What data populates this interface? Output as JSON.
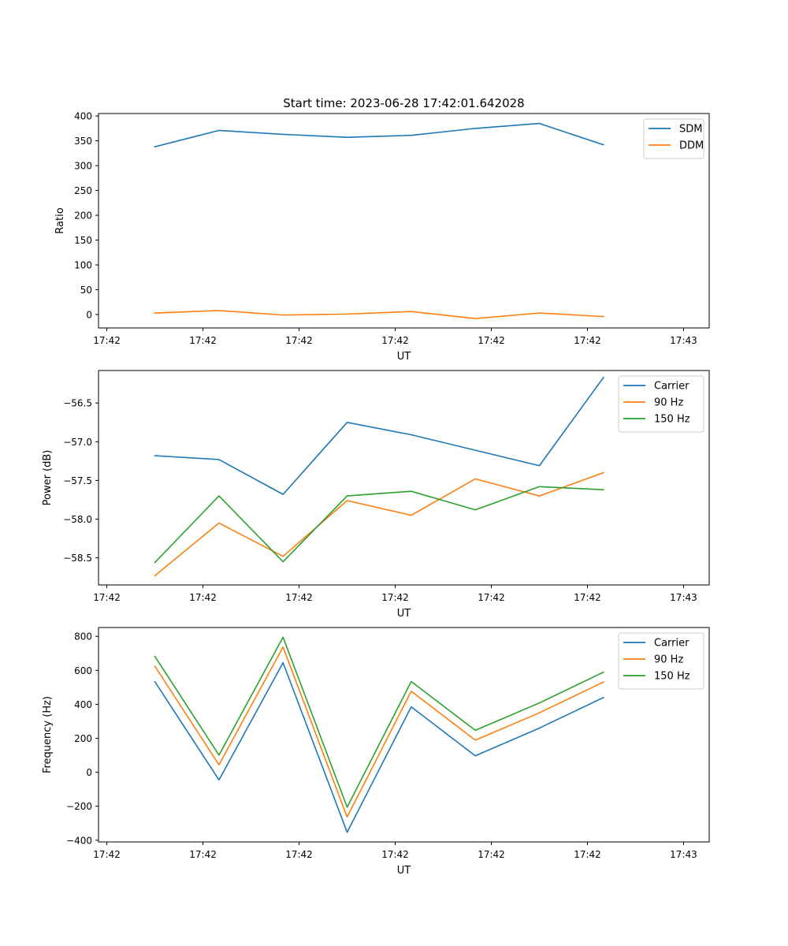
{
  "figure": {
    "title": "Start time: 2023-06-28 17:42:01.642028"
  },
  "colors": {
    "blue": "#1f77b4",
    "orange": "#ff7f0e",
    "green": "#2ca02c"
  },
  "chart_data": [
    {
      "type": "line",
      "title": "Start time: 2023-06-28 17:42:01.642028",
      "xlabel": "UT",
      "ylabel": "Ratio",
      "x_tick_labels": [
        "17:42",
        "17:42",
        "17:42",
        "17:42",
        "17:42",
        "17:42",
        "17:43"
      ],
      "xlim": [
        -0.13,
        9.4
      ],
      "ylim": [
        -27,
        405
      ],
      "yticks": [
        0,
        50,
        100,
        150,
        200,
        250,
        300,
        350,
        400
      ],
      "y_tick_labels": [
        "0",
        "50",
        "100",
        "150",
        "200",
        "250",
        "300",
        "350",
        "400"
      ],
      "legend": "top-right",
      "x": [
        0.75,
        1.75,
        2.75,
        3.75,
        4.75,
        5.75,
        6.75,
        7.75
      ],
      "series": [
        {
          "name": "SDM",
          "color": "#1f77b4",
          "values": [
            338,
            371,
            363,
            357,
            361,
            375,
            385,
            342
          ]
        },
        {
          "name": "DDM",
          "color": "#ff7f0e",
          "values": [
            3,
            8,
            -1,
            1,
            6,
            -8,
            3,
            -4
          ]
        }
      ]
    },
    {
      "type": "line",
      "xlabel": "UT",
      "ylabel": "Power (dB)",
      "x_tick_labels": [
        "17:42",
        "17:42",
        "17:42",
        "17:42",
        "17:42",
        "17:42",
        "17:43"
      ],
      "xlim": [
        -0.13,
        9.4
      ],
      "ylim": [
        -58.85,
        -56.08
      ],
      "yticks": [
        -58.5,
        -58.0,
        -57.5,
        -57.0,
        -56.5
      ],
      "y_tick_labels": [
        "−58.5",
        "−58.0",
        "−57.5",
        "−57.0",
        "−56.5"
      ],
      "legend": "top-right",
      "x": [
        0.75,
        1.75,
        2.75,
        3.75,
        4.75,
        5.75,
        6.75,
        7.75
      ],
      "series": [
        {
          "name": "Carrier",
          "color": "#1f77b4",
          "values": [
            -57.18,
            -57.23,
            -57.68,
            -56.75,
            -56.91,
            -57.11,
            -57.31,
            -56.17
          ]
        },
        {
          "name": "90 Hz",
          "color": "#ff7f0e",
          "values": [
            -58.73,
            -58.05,
            -58.48,
            -57.76,
            -57.95,
            -57.48,
            -57.7,
            -57.4
          ]
        },
        {
          "name": "150 Hz",
          "color": "#2ca02c",
          "values": [
            -58.56,
            -57.7,
            -58.55,
            -57.7,
            -57.64,
            -57.88,
            -57.58,
            -57.62
          ]
        }
      ]
    },
    {
      "type": "line",
      "xlabel": "UT",
      "ylabel": "Frequency (Hz)",
      "x_tick_labels": [
        "17:42",
        "17:42",
        "17:42",
        "17:42",
        "17:42",
        "17:42",
        "17:43"
      ],
      "xlim": [
        -0.13,
        9.4
      ],
      "ylim": [
        -410,
        852
      ],
      "yticks": [
        -400,
        -200,
        0,
        200,
        400,
        600,
        800
      ],
      "y_tick_labels": [
        "−400",
        "−200",
        "0",
        "200",
        "400",
        "600",
        "800"
      ],
      "legend": "top-right",
      "x": [
        0.75,
        1.75,
        2.75,
        3.75,
        4.75,
        5.75,
        6.75,
        7.75
      ],
      "series": [
        {
          "name": "Carrier",
          "color": "#1f77b4",
          "values": [
            533,
            -45,
            645,
            -353,
            385,
            97,
            260,
            440
          ]
        },
        {
          "name": "90 Hz",
          "color": "#ff7f0e",
          "values": [
            624,
            44,
            737,
            -263,
            477,
            189,
            350,
            531
          ]
        },
        {
          "name": "150 Hz",
          "color": "#2ca02c",
          "values": [
            682,
            101,
            795,
            -206,
            534,
            247,
            408,
            589
          ]
        }
      ]
    }
  ]
}
